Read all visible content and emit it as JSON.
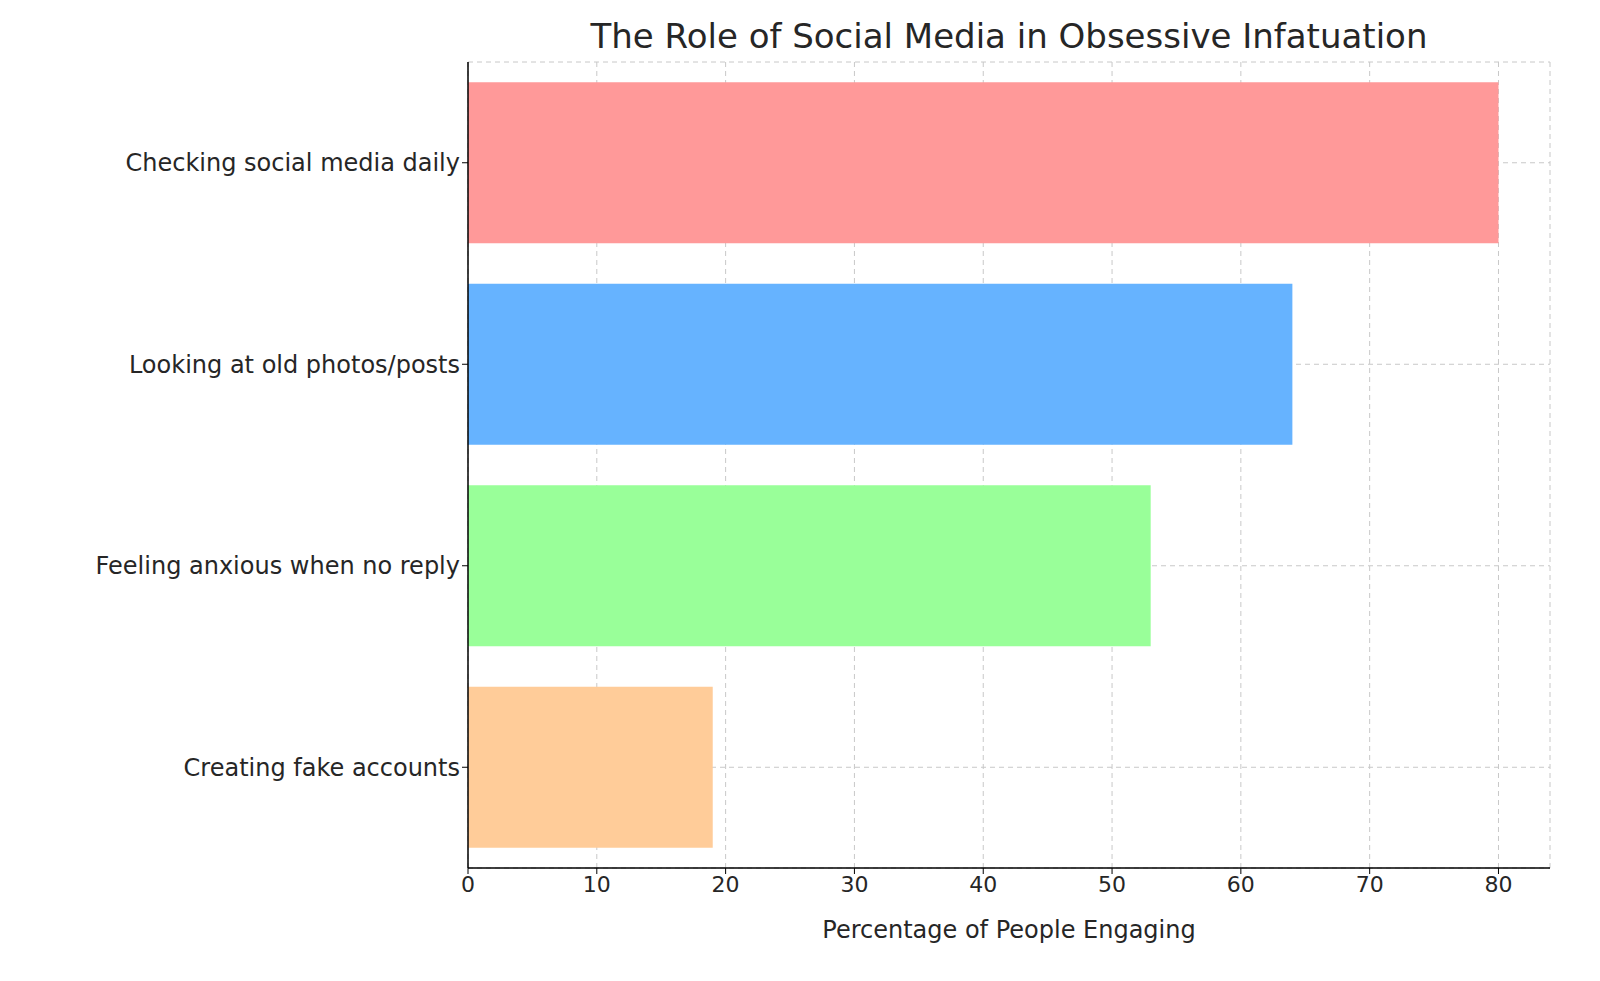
{
  "chart_data": {
    "type": "bar",
    "title": "The Role of Social Media in Obsessive Infatuation",
    "orientation": "horizontal",
    "categories": [
      "Checking social media daily",
      "Looking at old photos/posts",
      "Feeling anxious when no reply",
      "Creating fake accounts"
    ],
    "values": [
      80,
      64,
      53,
      19
    ],
    "colors": [
      "#ff9999",
      "#66b3ff",
      "#99ff99",
      "#ffcc99"
    ],
    "x_label": "Percentage of People Engaging",
    "xlim": [
      0,
      84
    ],
    "xticks": [
      0,
      10,
      20,
      30,
      40,
      50,
      60,
      70,
      80
    ],
    "grid": true
  }
}
